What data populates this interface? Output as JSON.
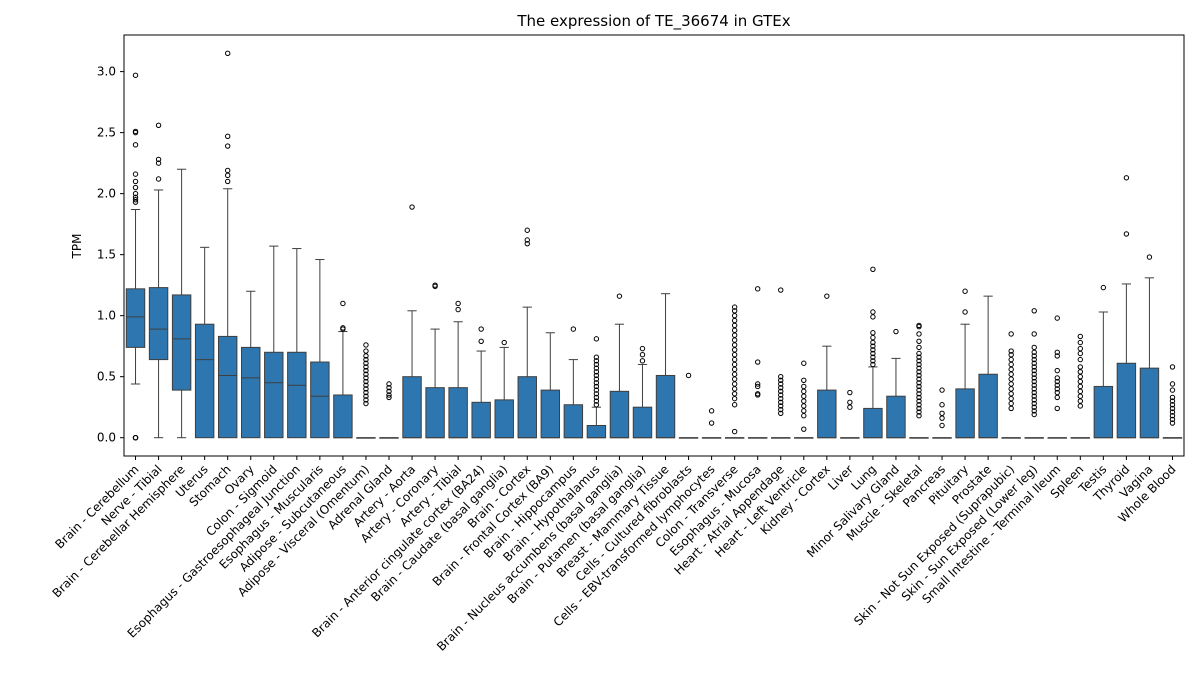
{
  "chart_data": {
    "type": "box",
    "title": "The expression of TE_36674 in GTEx",
    "xlabel": "",
    "ylabel": "TPM",
    "ylim": [
      -0.15,
      3.3
    ],
    "yticks": [
      0.0,
      0.5,
      1.0,
      1.5,
      2.0,
      2.5,
      3.0
    ],
    "ytick_labels": [
      "0.0",
      "0.5",
      "1.0",
      "1.5",
      "2.0",
      "2.5",
      "3.0"
    ],
    "color": "#2e76b0",
    "categories": [
      "Brain - Cerebellum",
      "Nerve - Tibial",
      "Brain - Cerebellar Hemisphere",
      "Uterus",
      "Stomach",
      "Ovary",
      "Colon - Sigmoid",
      "Esophagus - Gastroesophageal Junction",
      "Esophagus - Muscularis",
      "Adipose - Subcutaneous",
      "Adipose - Visceral (Omentum)",
      "Adrenal Gland",
      "Artery - Aorta",
      "Artery - Coronary",
      "Artery - Tibial",
      "Brain - Anterior cingulate cortex (BA24)",
      "Brain - Caudate (basal ganglia)",
      "Brain - Cortex",
      "Brain - Frontal Cortex (BA9)",
      "Brain - Hippocampus",
      "Brain - Hypothalamus",
      "Brain - Nucleus accumbens (basal ganglia)",
      "Brain - Putamen (basal ganglia)",
      "Breast - Mammary Tissue",
      "Cells - Cultured fibroblasts",
      "Cells - EBV-transformed lymphocytes",
      "Colon - Transverse",
      "Esophagus - Mucosa",
      "Heart - Atrial Appendage",
      "Heart - Left Ventricle",
      "Kidney - Cortex",
      "Liver",
      "Lung",
      "Minor Salivary Gland",
      "Muscle - Skeletal",
      "Pancreas",
      "Pituitary",
      "Prostate",
      "Skin - Not Sun Exposed (Suprapubic)",
      "Skin - Sun Exposed (Lower leg)",
      "Small Intestine - Terminal Ileum",
      "Spleen",
      "Testis",
      "Thyroid",
      "Vagina",
      "Whole Blood"
    ],
    "boxes": [
      {
        "q1": 0.74,
        "median": 0.99,
        "q3": 1.22,
        "low": 0.44,
        "high": 1.87,
        "outliers": [
          0.0,
          0.0,
          0.0,
          1.93,
          1.95,
          1.97,
          2.0,
          2.05,
          2.1,
          2.16,
          2.4,
          2.5,
          2.51,
          2.97
        ]
      },
      {
        "q1": 0.64,
        "median": 0.89,
        "q3": 1.23,
        "low": 0.0,
        "high": 2.03,
        "outliers": [
          2.12,
          2.25,
          2.28,
          2.56
        ]
      },
      {
        "q1": 0.39,
        "median": 0.81,
        "q3": 1.17,
        "low": 0.0,
        "high": 2.2,
        "outliers": []
      },
      {
        "q1": 0.0,
        "median": 0.64,
        "q3": 0.93,
        "low": 0.0,
        "high": 1.56,
        "outliers": []
      },
      {
        "q1": 0.0,
        "median": 0.51,
        "q3": 0.83,
        "low": 0.0,
        "high": 2.04,
        "outliers": [
          2.1,
          2.15,
          2.19,
          2.39,
          2.47,
          3.15
        ]
      },
      {
        "q1": 0.0,
        "median": 0.49,
        "q3": 0.74,
        "low": 0.0,
        "high": 1.2,
        "outliers": []
      },
      {
        "q1": 0.0,
        "median": 0.45,
        "q3": 0.7,
        "low": 0.0,
        "high": 1.57,
        "outliers": []
      },
      {
        "q1": 0.0,
        "median": 0.43,
        "q3": 0.7,
        "low": 0.0,
        "high": 1.55,
        "outliers": []
      },
      {
        "q1": 0.0,
        "median": 0.34,
        "q3": 0.62,
        "low": 0.0,
        "high": 1.46,
        "outliers": []
      },
      {
        "q1": 0.0,
        "median": 0.0,
        "q3": 0.35,
        "low": 0.0,
        "high": 0.87,
        "outliers": [
          0.89,
          0.9,
          1.1
        ]
      },
      {
        "q1": 0.0,
        "median": 0.0,
        "q3": 0.0,
        "low": 0.0,
        "high": 0.0,
        "outliers": [
          0.28,
          0.31,
          0.34,
          0.37,
          0.4,
          0.43,
          0.46,
          0.49,
          0.52,
          0.55,
          0.58,
          0.61,
          0.64,
          0.67,
          0.71,
          0.76
        ]
      },
      {
        "q1": 0.0,
        "median": 0.0,
        "q3": 0.0,
        "low": 0.0,
        "high": 0.0,
        "outliers": [
          0.33,
          0.35,
          0.38,
          0.41,
          0.44
        ]
      },
      {
        "q1": 0.0,
        "median": 0.0,
        "q3": 0.5,
        "low": 0.0,
        "high": 1.04,
        "outliers": [
          1.89
        ]
      },
      {
        "q1": 0.0,
        "median": 0.0,
        "q3": 0.41,
        "low": 0.0,
        "high": 0.89,
        "outliers": [
          1.24,
          1.25
        ]
      },
      {
        "q1": 0.0,
        "median": 0.0,
        "q3": 0.41,
        "low": 0.0,
        "high": 0.95,
        "outliers": [
          1.05,
          1.1
        ]
      },
      {
        "q1": 0.0,
        "median": 0.0,
        "q3": 0.29,
        "low": 0.0,
        "high": 0.71,
        "outliers": [
          0.79,
          0.89
        ]
      },
      {
        "q1": 0.0,
        "median": 0.0,
        "q3": 0.31,
        "low": 0.0,
        "high": 0.74,
        "outliers": [
          0.78
        ]
      },
      {
        "q1": 0.0,
        "median": 0.0,
        "q3": 0.5,
        "low": 0.0,
        "high": 1.07,
        "outliers": [
          1.59,
          1.62,
          1.7
        ]
      },
      {
        "q1": 0.0,
        "median": 0.0,
        "q3": 0.39,
        "low": 0.0,
        "high": 0.86,
        "outliers": []
      },
      {
        "q1": 0.0,
        "median": 0.0,
        "q3": 0.27,
        "low": 0.0,
        "high": 0.64,
        "outliers": [
          0.89
        ]
      },
      {
        "q1": 0.0,
        "median": 0.0,
        "q3": 0.1,
        "low": 0.0,
        "high": 0.25,
        "outliers": [
          0.27,
          0.3,
          0.33,
          0.36,
          0.39,
          0.42,
          0.45,
          0.48,
          0.51,
          0.54,
          0.57,
          0.6,
          0.63,
          0.66,
          0.81
        ]
      },
      {
        "q1": 0.0,
        "median": 0.0,
        "q3": 0.38,
        "low": 0.0,
        "high": 0.93,
        "outliers": [
          1.16
        ]
      },
      {
        "q1": 0.0,
        "median": 0.0,
        "q3": 0.25,
        "low": 0.0,
        "high": 0.6,
        "outliers": [
          0.63,
          0.68,
          0.73
        ]
      },
      {
        "q1": 0.0,
        "median": 0.0,
        "q3": 0.51,
        "low": 0.0,
        "high": 1.18,
        "outliers": []
      },
      {
        "q1": 0.0,
        "median": 0.0,
        "q3": 0.0,
        "low": 0.0,
        "high": 0.0,
        "outliers": [
          0.51
        ]
      },
      {
        "q1": 0.0,
        "median": 0.0,
        "q3": 0.0,
        "low": 0.0,
        "high": 0.0,
        "outliers": [
          0.12,
          0.22
        ]
      },
      {
        "q1": 0.0,
        "median": 0.0,
        "q3": 0.0,
        "low": 0.0,
        "high": 0.0,
        "outliers": [
          0.05,
          0.27,
          0.32,
          0.36,
          0.4,
          0.44,
          0.48,
          0.52,
          0.56,
          0.6,
          0.64,
          0.68,
          0.72,
          0.76,
          0.8,
          0.84,
          0.88,
          0.92,
          0.96,
          1.0,
          1.04,
          1.07
        ]
      },
      {
        "q1": 0.0,
        "median": 0.0,
        "q3": 0.0,
        "low": 0.0,
        "high": 0.0,
        "outliers": [
          0.35,
          0.36,
          0.42,
          0.44,
          0.62,
          1.22
        ]
      },
      {
        "q1": 0.0,
        "median": 0.0,
        "q3": 0.0,
        "low": 0.0,
        "high": 0.0,
        "outliers": [
          0.2,
          0.23,
          0.26,
          0.29,
          0.32,
          0.35,
          0.38,
          0.41,
          0.44,
          0.47,
          0.5,
          1.21
        ]
      },
      {
        "q1": 0.0,
        "median": 0.0,
        "q3": 0.0,
        "low": 0.0,
        "high": 0.0,
        "outliers": [
          0.07,
          0.18,
          0.22,
          0.26,
          0.3,
          0.34,
          0.38,
          0.42,
          0.47,
          0.61
        ]
      },
      {
        "q1": 0.0,
        "median": 0.0,
        "q3": 0.39,
        "low": 0.0,
        "high": 0.75,
        "outliers": [
          1.16
        ]
      },
      {
        "q1": 0.0,
        "median": 0.0,
        "q3": 0.0,
        "low": 0.0,
        "high": 0.0,
        "outliers": [
          0.25,
          0.29,
          0.37
        ]
      },
      {
        "q1": 0.0,
        "median": 0.0,
        "q3": 0.24,
        "low": 0.0,
        "high": 0.58,
        "outliers": [
          0.6,
          0.63,
          0.66,
          0.69,
          0.72,
          0.75,
          0.78,
          0.82,
          0.86,
          0.99,
          1.03,
          1.38
        ]
      },
      {
        "q1": 0.0,
        "median": 0.0,
        "q3": 0.34,
        "low": 0.0,
        "high": 0.65,
        "outliers": [
          0.87
        ]
      },
      {
        "q1": 0.0,
        "median": 0.0,
        "q3": 0.0,
        "low": 0.0,
        "high": 0.0,
        "outliers": [
          0.18,
          0.21,
          0.24,
          0.27,
          0.3,
          0.33,
          0.36,
          0.39,
          0.42,
          0.45,
          0.48,
          0.51,
          0.54,
          0.57,
          0.6,
          0.63,
          0.66,
          0.69,
          0.74,
          0.79,
          0.85,
          0.91,
          0.92
        ]
      },
      {
        "q1": 0.0,
        "median": 0.0,
        "q3": 0.0,
        "low": 0.0,
        "high": 0.0,
        "outliers": [
          0.1,
          0.16,
          0.2,
          0.27,
          0.39
        ]
      },
      {
        "q1": 0.0,
        "median": 0.0,
        "q3": 0.4,
        "low": 0.0,
        "high": 0.93,
        "outliers": [
          1.03,
          1.2
        ]
      },
      {
        "q1": 0.0,
        "median": 0.0,
        "q3": 0.52,
        "low": 0.0,
        "high": 1.16,
        "outliers": []
      },
      {
        "q1": 0.0,
        "median": 0.0,
        "q3": 0.0,
        "low": 0.0,
        "high": 0.0,
        "outliers": [
          0.24,
          0.28,
          0.32,
          0.36,
          0.4,
          0.44,
          0.48,
          0.52,
          0.56,
          0.6,
          0.64,
          0.68,
          0.71,
          0.85
        ]
      },
      {
        "q1": 0.0,
        "median": 0.0,
        "q3": 0.0,
        "low": 0.0,
        "high": 0.0,
        "outliers": [
          0.19,
          0.22,
          0.25,
          0.28,
          0.31,
          0.34,
          0.37,
          0.4,
          0.43,
          0.46,
          0.49,
          0.52,
          0.55,
          0.58,
          0.61,
          0.64,
          0.67,
          0.7,
          0.74,
          0.85,
          1.04
        ]
      },
      {
        "q1": 0.0,
        "median": 0.0,
        "q3": 0.0,
        "low": 0.0,
        "high": 0.0,
        "outliers": [
          0.24,
          0.33,
          0.37,
          0.4,
          0.43,
          0.46,
          0.49,
          0.55,
          0.67,
          0.7,
          0.98
        ]
      },
      {
        "q1": 0.0,
        "median": 0.0,
        "q3": 0.0,
        "low": 0.0,
        "high": 0.0,
        "outliers": [
          0.26,
          0.3,
          0.34,
          0.38,
          0.42,
          0.46,
          0.5,
          0.54,
          0.58,
          0.64,
          0.69,
          0.73,
          0.78,
          0.83
        ]
      },
      {
        "q1": 0.0,
        "median": 0.0,
        "q3": 0.42,
        "low": 0.0,
        "high": 1.03,
        "outliers": [
          1.23
        ]
      },
      {
        "q1": 0.0,
        "median": 0.0,
        "q3": 0.61,
        "low": 0.0,
        "high": 1.26,
        "outliers": [
          1.67,
          2.13
        ]
      },
      {
        "q1": 0.0,
        "median": 0.0,
        "q3": 0.57,
        "low": 0.0,
        "high": 1.31,
        "outliers": [
          1.48
        ]
      },
      {
        "q1": 0.0,
        "median": 0.0,
        "q3": 0.0,
        "low": 0.0,
        "high": 0.0,
        "outliers": [
          0.12,
          0.15,
          0.18,
          0.21,
          0.24,
          0.27,
          0.3,
          0.33,
          0.39,
          0.44,
          0.58
        ]
      }
    ]
  }
}
